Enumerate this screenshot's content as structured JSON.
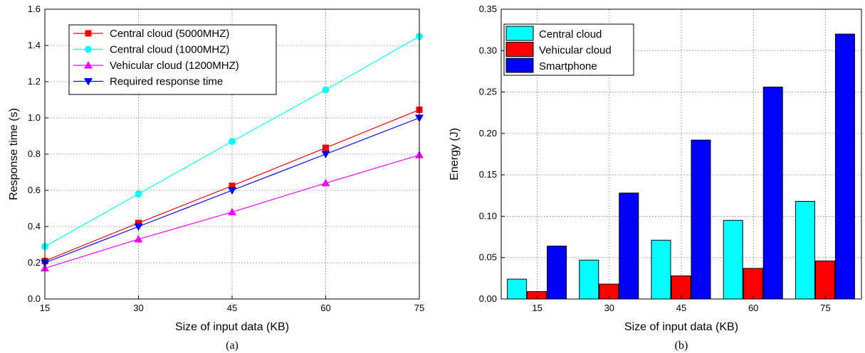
{
  "chart_data": [
    {
      "type": "line",
      "caption": "(a)",
      "xlabel": "Size of input data (KB)",
      "ylabel": "Response time (s)",
      "x": [
        15,
        30,
        45,
        60,
        75
      ],
      "xlim": [
        15,
        75
      ],
      "ylim": [
        0.0,
        1.6
      ],
      "xticks": [
        "15",
        "30",
        "45",
        "60",
        "75"
      ],
      "yticks": [
        "0.0",
        "0.2",
        "0.4",
        "0.6",
        "0.8",
        "1.0",
        "1.2",
        "1.4",
        "1.6"
      ],
      "grid": true,
      "legend_position": "top-left",
      "series": [
        {
          "name": "Central cloud (5000MHZ)",
          "color": "#ff0000",
          "marker": "square",
          "values": [
            0.21,
            0.42,
            0.625,
            0.835,
            1.045
          ]
        },
        {
          "name": "Central cloud (1000MHZ)",
          "color": "#00ffff",
          "marker": "circle",
          "values": [
            0.29,
            0.58,
            0.87,
            1.155,
            1.45
          ]
        },
        {
          "name": "Vehicular cloud (1200MHZ)",
          "color": "#ff00ff",
          "marker": "triangle-up",
          "values": [
            0.17,
            0.33,
            0.48,
            0.64,
            0.795
          ]
        },
        {
          "name": "Required response time",
          "color": "#0000ff",
          "marker": "triangle-down",
          "values": [
            0.2,
            0.4,
            0.6,
            0.8,
            1.0
          ]
        }
      ]
    },
    {
      "type": "bar",
      "caption": "(b)",
      "xlabel": "Size of input data (KB)",
      "ylabel": "Energy (J)",
      "categories": [
        "15",
        "30",
        "45",
        "60",
        "75"
      ],
      "ylim": [
        0.0,
        0.35
      ],
      "yticks": [
        "0.00",
        "0.05",
        "0.10",
        "0.15",
        "0.20",
        "0.25",
        "0.30",
        "0.35"
      ],
      "grid": true,
      "legend_position": "top-left",
      "series": [
        {
          "name": "Central cloud",
          "color": "#00ffff",
          "values": [
            0.024,
            0.047,
            0.071,
            0.095,
            0.118
          ]
        },
        {
          "name": "Vehicular cloud",
          "color": "#ff0000",
          "values": [
            0.009,
            0.018,
            0.028,
            0.037,
            0.046
          ]
        },
        {
          "name": "Smartphone",
          "color": "#0000ff",
          "values": [
            0.064,
            0.128,
            0.192,
            0.256,
            0.32
          ]
        }
      ]
    }
  ]
}
